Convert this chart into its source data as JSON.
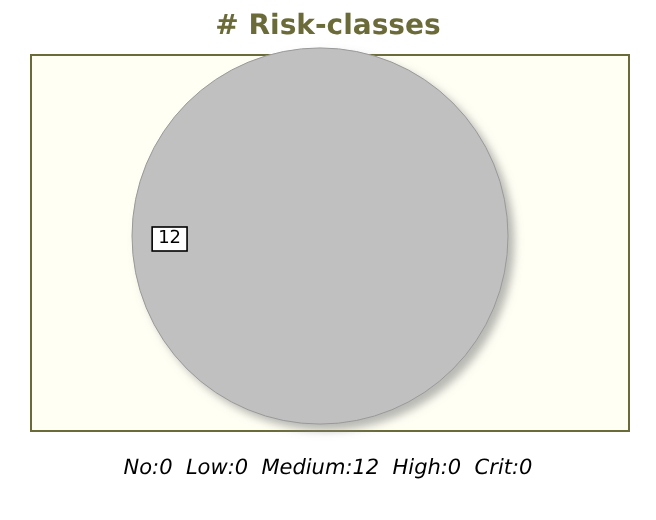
{
  "chart_data": {
    "type": "pie",
    "title": "# Risk-classes",
    "categories": [
      null
    ],
    "values": [
      12
    ],
    "colors": [
      "#c0c0c0"
    ],
    "data_labels": true,
    "annotations": [
      "No:0  Low:0  Medium:12  High:0  Crit:0"
    ]
  }
}
